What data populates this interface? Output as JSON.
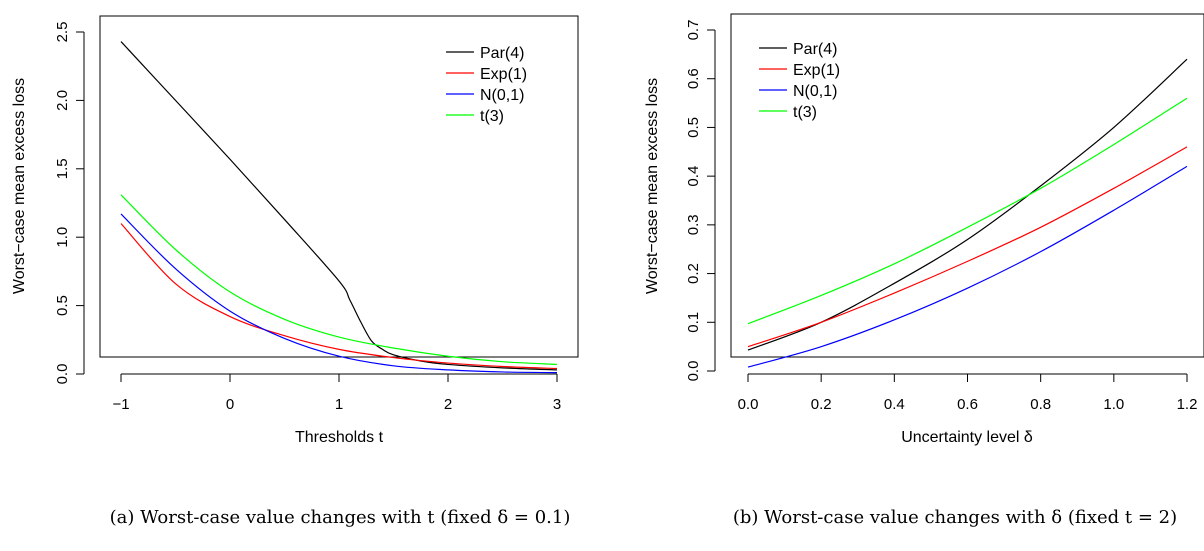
{
  "chart_data": [
    {
      "type": "line",
      "xlabel": "Thresholds t",
      "ylabel": "Worst−case mean excess loss",
      "xlim": [
        -1,
        3
      ],
      "ylim": [
        0,
        2.5
      ],
      "xticks": [
        "−1",
        "0",
        "1",
        "2",
        "3"
      ],
      "yticks": [
        "0.0",
        "0.5",
        "1.0",
        "1.5",
        "2.0",
        "2.5"
      ],
      "legend_position": "top-right",
      "caption": "(a)  Worst-case value changes with t (fixed δ = 0.1)",
      "series": [
        {
          "name": "Par(4)",
          "color": "#000000",
          "x": [
            -1,
            -0.5,
            0,
            0.5,
            1.0,
            1.1,
            1.2,
            1.3,
            1.4,
            1.5,
            1.75,
            2.0,
            2.5,
            3.0
          ],
          "y": [
            2.43,
            2.0,
            1.57,
            1.13,
            0.68,
            0.54,
            0.38,
            0.24,
            0.18,
            0.14,
            0.095,
            0.07,
            0.045,
            0.03
          ]
        },
        {
          "name": "Exp(1)",
          "color": "#ff0000",
          "x": [
            -1,
            -0.5,
            0,
            0.5,
            1.0,
            1.5,
            2.0,
            2.5,
            3.0
          ],
          "y": [
            1.1,
            0.66,
            0.42,
            0.28,
            0.18,
            0.12,
            0.08,
            0.055,
            0.04
          ]
        },
        {
          "name": "N(0,1)",
          "color": "#0000ff",
          "x": [
            -1,
            -0.5,
            0,
            0.5,
            1.0,
            1.5,
            2.0,
            2.5,
            3.0
          ],
          "y": [
            1.17,
            0.77,
            0.46,
            0.26,
            0.13,
            0.06,
            0.03,
            0.015,
            0.01
          ]
        },
        {
          "name": "t(3)",
          "color": "#00ff00",
          "x": [
            -1,
            -0.5,
            0,
            0.5,
            1.0,
            1.5,
            2.0,
            2.5,
            3.0
          ],
          "y": [
            1.31,
            0.91,
            0.6,
            0.4,
            0.27,
            0.19,
            0.13,
            0.09,
            0.07
          ]
        }
      ]
    },
    {
      "type": "line",
      "xlabel": "Uncertainty level δ",
      "ylabel": "Worst−case mean excess loss",
      "xlim": [
        0,
        1.2
      ],
      "ylim": [
        0,
        0.7
      ],
      "xticks": [
        "0.0",
        "0.2",
        "0.4",
        "0.6",
        "0.8",
        "1.0",
        "1.2"
      ],
      "yticks": [
        "0.0",
        "0.1",
        "0.2",
        "0.3",
        "0.4",
        "0.5",
        "0.6",
        "0.7"
      ],
      "legend_position": "top-left",
      "caption": "(b)  Worst-case value changes with δ (fixed t = 2)",
      "series": [
        {
          "name": "Par(4)",
          "color": "#000000",
          "x": [
            0,
            0.2,
            0.4,
            0.6,
            0.8,
            1.0,
            1.2
          ],
          "y": [
            0.043,
            0.1,
            0.18,
            0.27,
            0.38,
            0.5,
            0.64
          ]
        },
        {
          "name": "Exp(1)",
          "color": "#ff0000",
          "x": [
            0,
            0.2,
            0.4,
            0.6,
            0.8,
            1.0,
            1.2
          ],
          "y": [
            0.05,
            0.1,
            0.16,
            0.225,
            0.295,
            0.375,
            0.46
          ]
        },
        {
          "name": "N(0,1)",
          "color": "#0000ff",
          "x": [
            0,
            0.2,
            0.4,
            0.6,
            0.8,
            1.0,
            1.2
          ],
          "y": [
            0.008,
            0.05,
            0.105,
            0.17,
            0.245,
            0.33,
            0.42
          ]
        },
        {
          "name": "t(3)",
          "color": "#00ff00",
          "x": [
            0,
            0.2,
            0.4,
            0.6,
            0.8,
            1.0,
            1.2
          ],
          "y": [
            0.097,
            0.155,
            0.22,
            0.295,
            0.375,
            0.465,
            0.56
          ]
        }
      ]
    }
  ]
}
